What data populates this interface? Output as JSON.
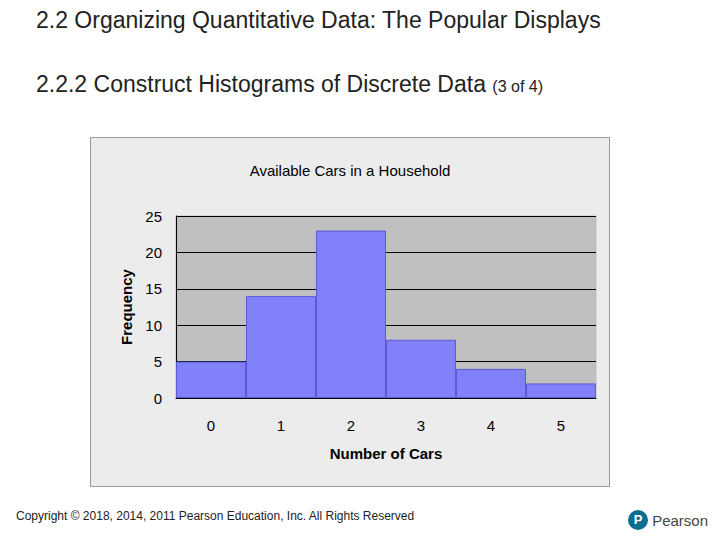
{
  "header": {
    "title": "2.2 Organizing Quantitative Data: The Popular Displays",
    "subtitle": "2.2.2 Construct Histograms of Discrete Data",
    "part": "(3 of 4)"
  },
  "footer": {
    "copyright": "Copyright © 2018, 2014, 2011 Pearson Education, Inc. All Rights Reserved",
    "brand": "Pearson"
  },
  "chart_data": {
    "type": "bar",
    "title": "Available Cars in a Household",
    "x_label": "Number of Cars",
    "y_label": "Frequency",
    "categories": [
      "0",
      "1",
      "2",
      "3",
      "4",
      "5"
    ],
    "values": [
      5,
      14,
      23,
      8,
      4,
      2
    ],
    "color": "#8080f8",
    "ylim": [
      0,
      25
    ],
    "yticks": [
      0,
      5,
      10,
      15,
      20,
      25
    ],
    "grid": true
  }
}
